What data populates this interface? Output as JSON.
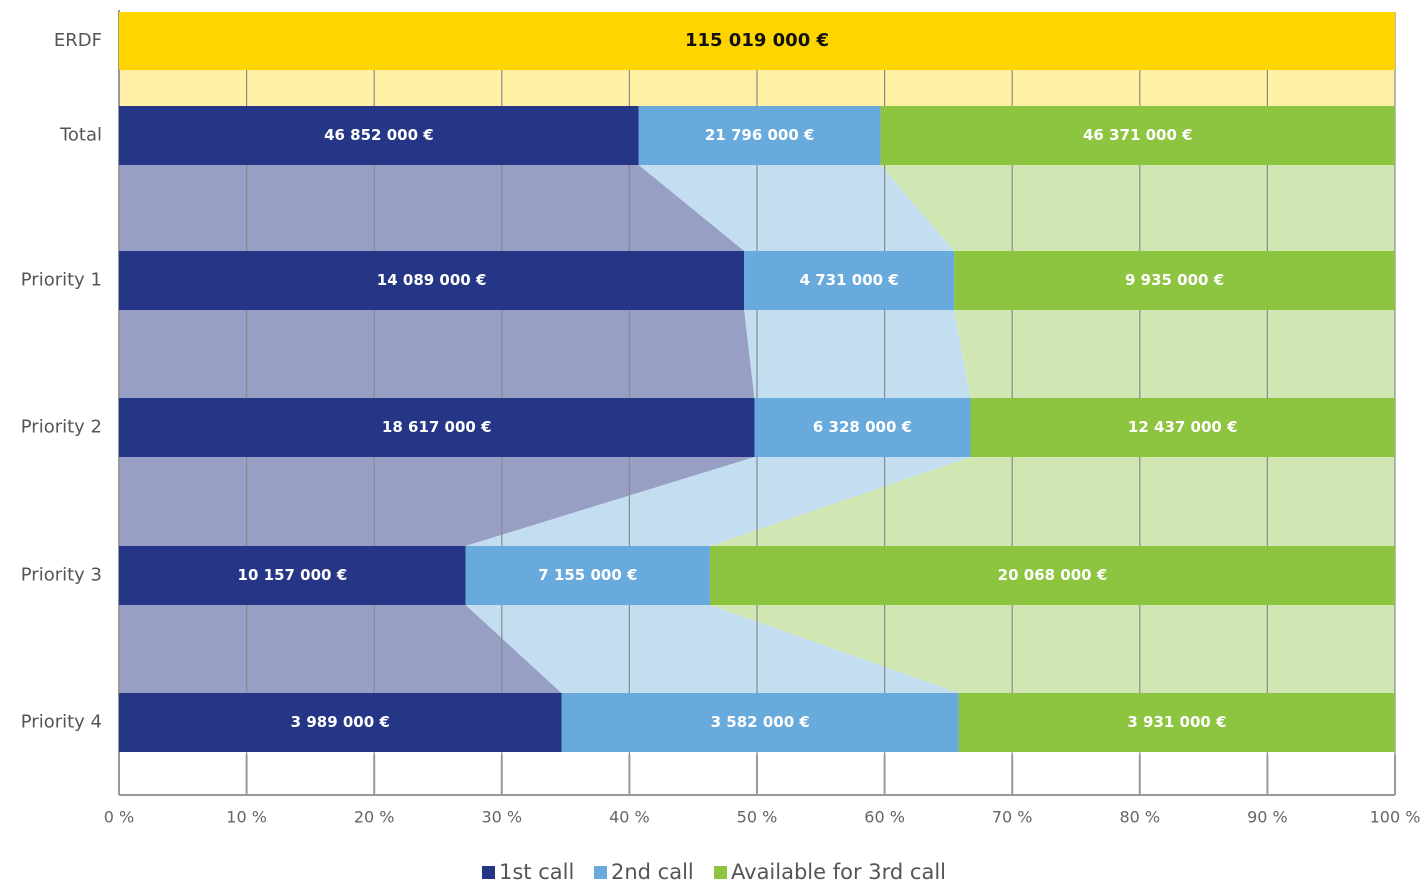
{
  "chart_data": {
    "type": "bar",
    "orientation": "horizontal",
    "stacking": "percent",
    "total_bar": {
      "label": "ERDF",
      "value": 115019000,
      "value_label": "115 019 000 €",
      "color": "#ffd500"
    },
    "categories": [
      "Total",
      "Priority 1",
      "Priority 2",
      "Priority 3",
      "Priority 4"
    ],
    "series": [
      {
        "name": "1st call",
        "color": "#263686",
        "values": [
          46852000,
          14089000,
          18617000,
          10157000,
          3989000
        ],
        "value_labels": [
          "46 852 000 €",
          "14 089 000 €",
          "18 617 000 €",
          "10 157 000 €",
          "3 989 000 €"
        ]
      },
      {
        "name": "2nd call",
        "color": "#69aadc",
        "values": [
          21796000,
          4731000,
          6328000,
          7155000,
          3582000
        ],
        "value_labels": [
          "21 796 000 €",
          "4 731 000 €",
          "6 328 000 €",
          "7 155 000 €",
          "3 582 000 €"
        ]
      },
      {
        "name": "Available for 3rd call",
        "color": "#8dc440",
        "values": [
          46371000,
          9935000,
          12437000,
          20068000,
          3931000
        ],
        "value_labels": [
          "46 371 000 €",
          "9 935 000 €",
          "12 437 000 €",
          "20 068 000 €",
          "3 931 000 €"
        ]
      }
    ],
    "xlim": [
      0,
      100
    ],
    "xticks": [
      {
        "value": 0,
        "label": "0 %"
      },
      {
        "value": 10,
        "label": "10 %"
      },
      {
        "value": 20,
        "label": "20 %"
      },
      {
        "value": 30,
        "label": "30 %"
      },
      {
        "value": 40,
        "label": "40 %"
      },
      {
        "value": 50,
        "label": "50 %"
      },
      {
        "value": 60,
        "label": "60 %"
      },
      {
        "value": 70,
        "label": "70 %"
      },
      {
        "value": 80,
        "label": "80 %"
      },
      {
        "value": 90,
        "label": "90 %"
      },
      {
        "value": 100,
        "label": "100 %"
      }
    ],
    "grid": true,
    "legend": "bottom"
  }
}
